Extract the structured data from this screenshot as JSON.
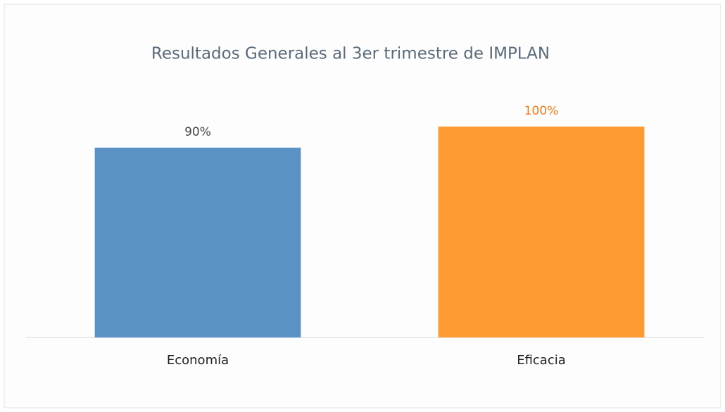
{
  "chart_data": {
    "type": "bar",
    "title": "Resultados Generales al 3er trimestre de IMPLAN",
    "categories": [
      "Economía",
      "Eficacia"
    ],
    "values": [
      90,
      100
    ],
    "value_labels": [
      "90%",
      "100%"
    ],
    "colors": [
      "#5a92c6",
      "#ff9b33"
    ],
    "value_label_colors": [
      "#444444",
      "#f07a1a"
    ]
  }
}
